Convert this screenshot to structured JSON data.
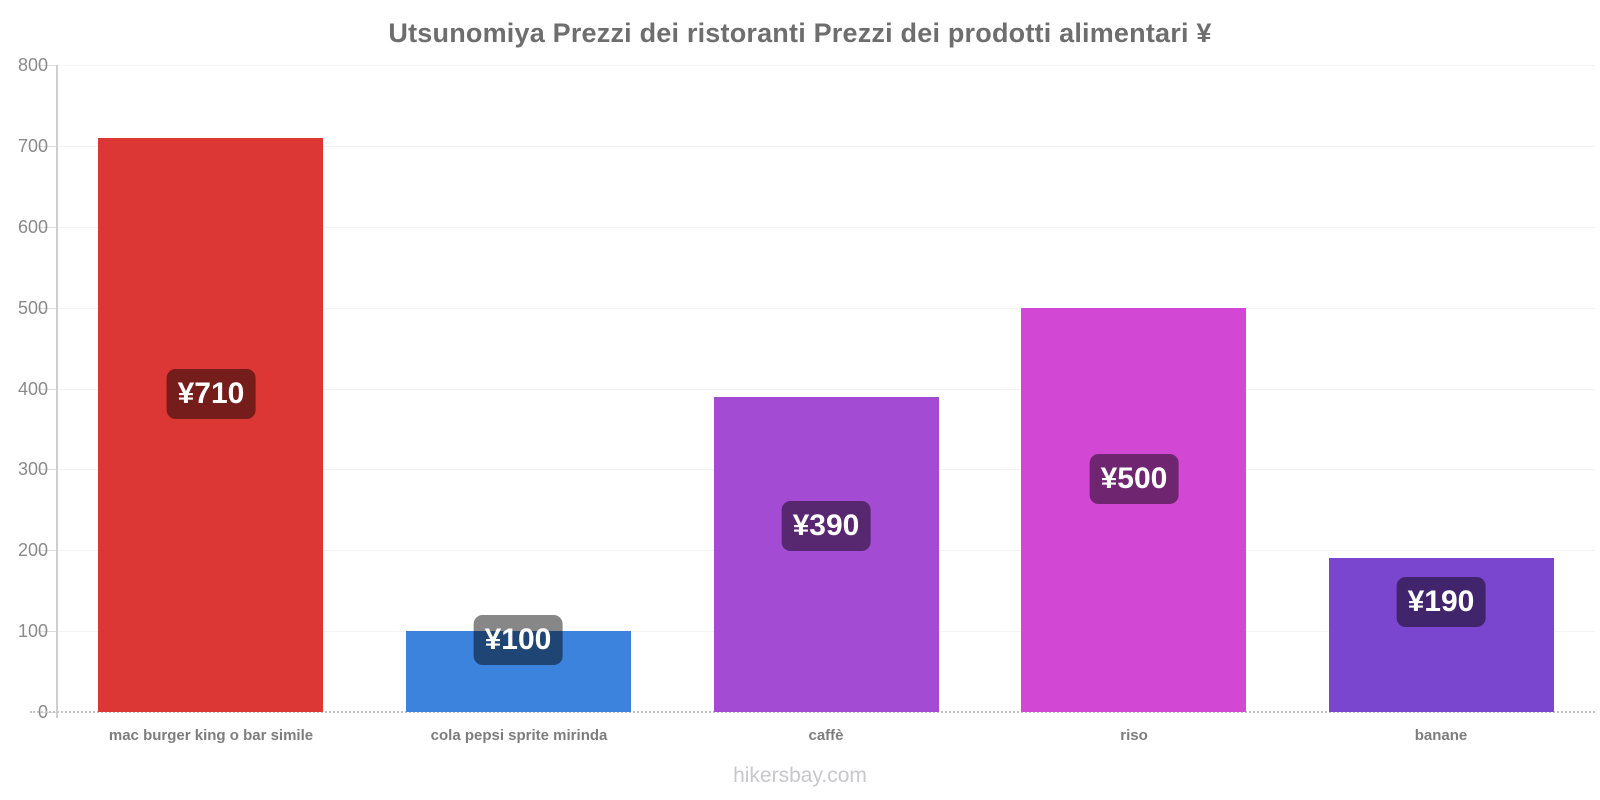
{
  "chart_data": {
    "type": "bar",
    "title": "Utsunomiya Prezzi dei ristoranti Prezzi dei prodotti alimentari ¥",
    "categories": [
      "mac burger king o bar simile",
      "cola pepsi sprite mirinda",
      "caffè",
      "riso",
      "banane"
    ],
    "values": [
      710,
      100,
      390,
      500,
      190
    ],
    "bar_labels": [
      "¥710",
      "¥100",
      "¥390",
      "¥500",
      "¥190"
    ],
    "bar_colors": [
      "#dc3734",
      "#3b83dd",
      "#a44bd3",
      "#d247d3",
      "#7a46cf"
    ],
    "currency": "¥",
    "xlabel": "",
    "ylabel": "",
    "ylim": [
      0,
      800
    ],
    "yticks": [
      0,
      100,
      200,
      300,
      400,
      500,
      600,
      700,
      800
    ],
    "grid": "faint horizontal gridlines, dotted baseline at zero",
    "legend": "none",
    "label_style": {
      "badge_bg": "rgba(0,0,0,0.47)",
      "text_color": "#ffffff"
    },
    "label_pos_frac_from_bottom": [
      0.553,
      0.89,
      0.59,
      0.575,
      0.715
    ]
  },
  "footer": {
    "watermark": "hikersbay.com"
  }
}
